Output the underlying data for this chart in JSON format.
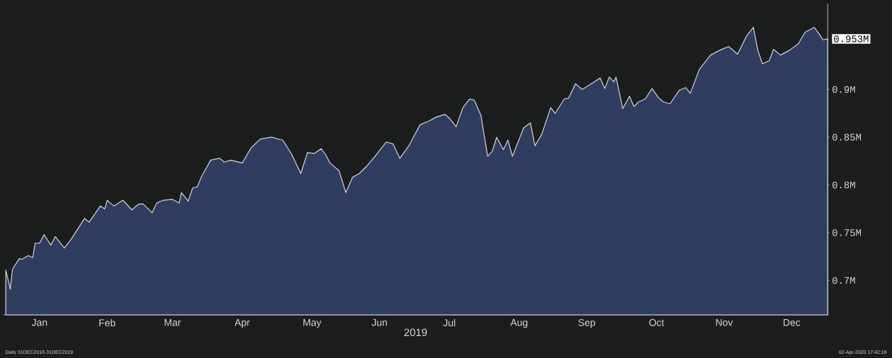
{
  "chart_data": {
    "type": "area",
    "xlabel": "2019",
    "color": "#2e3d5f",
    "x": [
      "2018-12-31",
      "2019-01-02",
      "2019-01-03",
      "2019-01-06",
      "2019-01-07",
      "2019-01-10",
      "2019-01-12",
      "2019-01-13",
      "2019-01-15",
      "2019-01-17",
      "2019-01-20",
      "2019-01-22",
      "2019-01-26",
      "2019-01-29",
      "2019-02-04",
      "2019-02-06",
      "2019-02-11",
      "2019-02-13",
      "2019-02-14",
      "2019-02-17",
      "2019-02-21",
      "2019-02-25",
      "2019-02-28",
      "2019-03-02",
      "2019-03-06",
      "2019-03-08",
      "2019-03-11",
      "2019-03-15",
      "2019-03-18",
      "2019-03-19",
      "2019-03-22",
      "2019-03-24",
      "2019-03-26",
      "2019-03-28",
      "2019-04-01",
      "2019-04-05",
      "2019-04-07",
      "2019-04-10",
      "2019-04-15",
      "2019-04-19",
      "2019-04-23",
      "2019-04-28",
      "2019-05-03",
      "2019-05-07",
      "2019-05-11",
      "2019-05-14",
      "2019-05-17",
      "2019-05-20",
      "2019-05-22",
      "2019-05-24",
      "2019-05-28",
      "2019-05-31",
      "2019-06-03",
      "2019-06-06",
      "2019-06-09",
      "2019-06-13",
      "2019-06-18",
      "2019-06-21",
      "2019-06-24",
      "2019-06-28",
      "2019-06-30",
      "2019-07-03",
      "2019-07-07",
      "2019-07-10",
      "2019-07-14",
      "2019-07-16",
      "2019-07-19",
      "2019-07-22",
      "2019-07-25",
      "2019-07-27",
      "2019-07-30",
      "2019-08-02",
      "2019-08-04",
      "2019-08-06",
      "2019-08-09",
      "2019-08-11",
      "2019-08-13",
      "2019-08-18",
      "2019-08-21",
      "2019-08-23",
      "2019-08-26",
      "2019-08-30",
      "2019-09-01",
      "2019-09-05",
      "2019-09-07",
      "2019-09-10",
      "2019-09-13",
      "2019-09-21",
      "2019-09-23",
      "2019-09-25",
      "2019-09-27",
      "2019-09-28",
      "2019-10-01",
      "2019-10-04",
      "2019-10-06",
      "2019-10-08",
      "2019-10-11",
      "2019-10-14",
      "2019-10-17",
      "2019-10-19",
      "2019-10-22",
      "2019-10-26",
      "2019-10-29",
      "2019-10-31",
      "2019-11-04",
      "2019-11-09",
      "2019-11-13",
      "2019-11-17",
      "2019-11-21",
      "2019-11-25",
      "2019-11-28",
      "2019-11-30",
      "2019-12-02",
      "2019-12-05",
      "2019-12-07",
      "2019-12-10",
      "2019-12-14",
      "2019-12-18",
      "2019-12-21",
      "2019-12-25",
      "2019-12-27",
      "2019-12-29",
      "2019-12-31"
    ],
    "values": [
      0.711,
      0.691,
      0.712,
      0.723,
      0.722,
      0.726,
      0.724,
      0.739,
      0.739,
      0.748,
      0.737,
      0.746,
      0.734,
      0.743,
      0.765,
      0.761,
      0.778,
      0.775,
      0.784,
      0.778,
      0.784,
      0.774,
      0.78,
      0.78,
      0.771,
      0.781,
      0.784,
      0.785,
      0.781,
      0.792,
      0.783,
      0.797,
      0.798,
      0.809,
      0.826,
      0.828,
      0.824,
      0.826,
      0.823,
      0.839,
      0.848,
      0.85,
      0.847,
      0.832,
      0.812,
      0.834,
      0.833,
      0.838,
      0.832,
      0.823,
      0.815,
      0.792,
      0.808,
      0.812,
      0.819,
      0.83,
      0.845,
      0.843,
      0.828,
      0.841,
      0.85,
      0.863,
      0.867,
      0.871,
      0.874,
      0.87,
      0.861,
      0.881,
      0.89,
      0.889,
      0.873,
      0.83,
      0.835,
      0.85,
      0.837,
      0.847,
      0.83,
      0.86,
      0.865,
      0.841,
      0.853,
      0.881,
      0.875,
      0.89,
      0.891,
      0.906,
      0.9,
      0.912,
      0.901,
      0.913,
      0.908,
      0.913,
      0.88,
      0.893,
      0.882,
      0.887,
      0.89,
      0.901,
      0.891,
      0.887,
      0.885,
      0.899,
      0.902,
      0.896,
      0.921,
      0.936,
      0.941,
      0.945,
      0.937,
      0.956,
      0.965,
      0.941,
      0.927,
      0.93,
      0.942,
      0.936,
      0.941,
      0.948,
      0.96,
      0.965,
      0.959,
      0.952,
      0.953
    ],
    "xlim": [
      "2018-12-30",
      "2019-12-31"
    ],
    "xticks": [
      {
        "value": "2019-01-15",
        "label": "Jan"
      },
      {
        "value": "2019-02-14",
        "label": "Feb"
      },
      {
        "value": "2019-03-15",
        "label": "Mar"
      },
      {
        "value": "2019-04-15",
        "label": "Apr"
      },
      {
        "value": "2019-05-16",
        "label": "May"
      },
      {
        "value": "2019-06-15",
        "label": "Jun"
      },
      {
        "value": "2019-07-16",
        "label": "Jul"
      },
      {
        "value": "2019-08-16",
        "label": "Aug"
      },
      {
        "value": "2019-09-15",
        "label": "Sep"
      },
      {
        "value": "2019-10-16",
        "label": "Oct"
      },
      {
        "value": "2019-11-15",
        "label": "Nov"
      },
      {
        "value": "2019-12-15",
        "label": "Dec"
      }
    ],
    "ylim": [
      0.664,
      0.99
    ],
    "yticks": [
      {
        "value": 0.7,
        "label": "0.7M"
      },
      {
        "value": 0.75,
        "label": "0.75M"
      },
      {
        "value": 0.8,
        "label": "0.8M"
      },
      {
        "value": 0.85,
        "label": "0.85M"
      },
      {
        "value": 0.9,
        "label": "0.9M"
      }
    ],
    "annotations": [
      {
        "text": "0.953M",
        "x": "2019-12-31",
        "y": 0.953
      },
      "Daily 31DEC2018-31DEC2019",
      "02-Apr-2020 17:42:18"
    ]
  }
}
